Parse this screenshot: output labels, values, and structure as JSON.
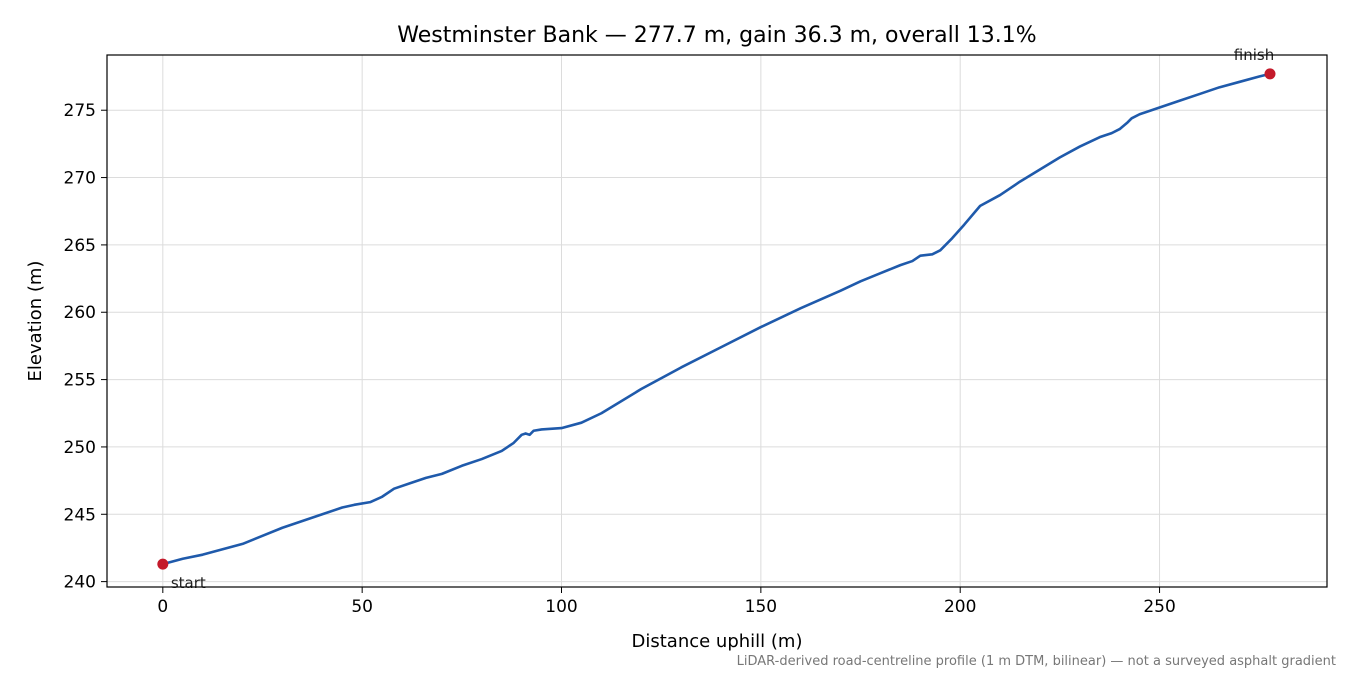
{
  "chart_data": {
    "type": "line",
    "title": "Westminster Bank — 277.7 m, gain 36.3 m, overall 13.1%",
    "xlabel": "Distance uphill (m)",
    "ylabel": "Elevation (m)",
    "footnote": "LiDAR-derived road-centreline profile (1 m DTM, bilinear) — not a surveyed asphalt gradient",
    "xlim": [
      -14,
      292
    ],
    "ylim": [
      239.6,
      279.1
    ],
    "xticks": [
      0,
      50,
      100,
      150,
      200,
      250
    ],
    "yticks": [
      240,
      245,
      250,
      255,
      260,
      265,
      270,
      275
    ],
    "grid": true,
    "series": [
      {
        "color": "#1f5aab",
        "x": [
          0,
          5,
          10,
          15,
          20,
          25,
          30,
          35,
          40,
          45,
          48,
          52,
          55,
          58,
          62,
          66,
          70,
          75,
          80,
          85,
          88,
          90,
          91,
          92,
          93,
          95,
          100,
          105,
          110,
          120,
          130,
          140,
          150,
          160,
          170,
          175,
          180,
          185,
          188,
          190,
          193,
          195,
          198,
          201,
          205,
          210,
          215,
          220,
          225,
          230,
          235,
          238,
          240,
          242,
          243,
          245,
          250,
          255,
          260,
          265,
          270,
          275,
          277.7
        ],
        "y": [
          241.3,
          241.7,
          242.0,
          242.4,
          242.8,
          243.4,
          244.0,
          244.5,
          245.0,
          245.5,
          245.7,
          245.9,
          246.3,
          246.9,
          247.3,
          247.7,
          248.0,
          248.6,
          249.1,
          249.7,
          250.3,
          250.9,
          251.0,
          250.9,
          251.2,
          251.3,
          251.4,
          251.8,
          252.5,
          254.3,
          255.9,
          257.4,
          258.9,
          260.3,
          261.6,
          262.3,
          262.9,
          263.5,
          263.8,
          264.2,
          264.3,
          264.6,
          265.5,
          266.5,
          267.9,
          268.7,
          269.7,
          270.6,
          271.5,
          272.3,
          273.0,
          273.3,
          273.6,
          274.1,
          274.4,
          274.7,
          275.2,
          275.7,
          276.2,
          276.7,
          277.1,
          277.5,
          277.7
        ]
      }
    ],
    "markers": [
      {
        "label": "start",
        "x": 0,
        "y": 241.3,
        "color": "#c41a2b"
      },
      {
        "label": "finish",
        "x": 277.7,
        "y": 277.7,
        "color": "#c41a2b"
      }
    ]
  }
}
